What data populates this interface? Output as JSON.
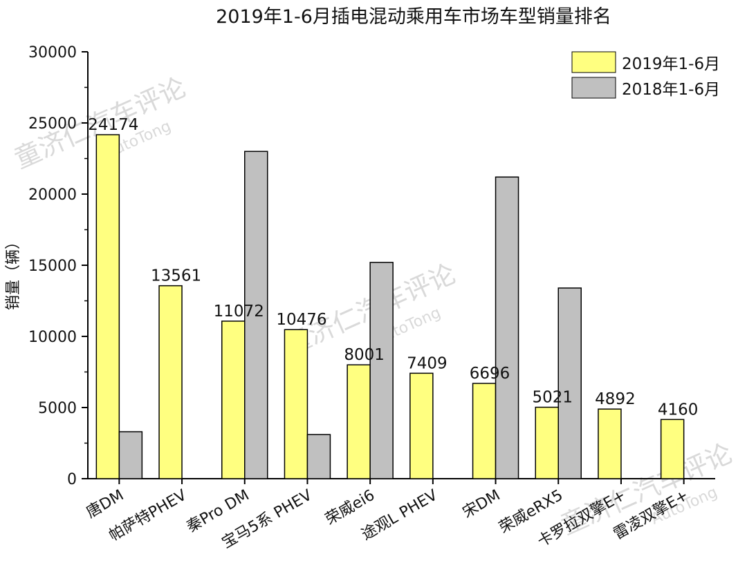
{
  "chart_data": {
    "type": "bar",
    "title": "2019年1-6月插电混动乘用车市场车型销量排名",
    "ylabel": "销量（辆）",
    "xlabel": "",
    "ylim": [
      0,
      30000
    ],
    "yticks": [
      0,
      5000,
      10000,
      15000,
      20000,
      25000,
      30000
    ],
    "grid": false,
    "legend_position": "top-right",
    "categories": [
      "唐DM",
      "帕萨特PHEV",
      "秦Pro DM",
      "宝马5系 PHEV",
      "荣威ei6",
      "途观L PHEV",
      "宋DM",
      "荣威eRX5",
      "卡罗拉双擎E+",
      "雷凌双擎E+"
    ],
    "series": [
      {
        "name": "2019年1-6月",
        "color": "#ffff80",
        "values": [
          24174,
          13561,
          11072,
          10476,
          8001,
          7409,
          6696,
          5021,
          4892,
          4160
        ],
        "data_labels": [
          "24174",
          "13561",
          "11072",
          "10476",
          "8001",
          "7409",
          "6696",
          "5021",
          "4892",
          "4160"
        ]
      },
      {
        "name": "2018年1-6月",
        "color": "#c0c0c0",
        "values": [
          3300,
          0,
          23000,
          3100,
          15200,
          0,
          21200,
          13400,
          0,
          0
        ]
      }
    ]
  },
  "watermark": {
    "text": "童济仁汽车评论",
    "subtext": "AutoTong"
  }
}
